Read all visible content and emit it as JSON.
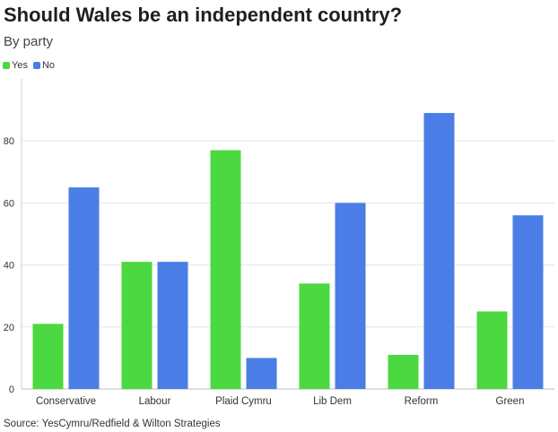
{
  "chart_data": {
    "type": "bar",
    "title": "Should Wales be an independent country?",
    "subtitle": "By party",
    "categories": [
      "Conservative",
      "Labour",
      "Plaid Cymru",
      "Lib Dem",
      "Reform",
      "Green"
    ],
    "series": [
      {
        "name": "Yes",
        "color": "#4cd840",
        "values": [
          21,
          41,
          77,
          34,
          11,
          25
        ]
      },
      {
        "name": "No",
        "color": "#4a7ee6",
        "values": [
          65,
          41,
          10,
          60,
          89,
          56
        ]
      }
    ],
    "ylim": [
      0,
      100
    ],
    "yticks": [
      0,
      20,
      40,
      60,
      80
    ],
    "grid": true,
    "legend_position": "top-left",
    "xlabel": "",
    "ylabel": "",
    "source": "Source: YesCymru/Redfield & Wilton Strategies"
  }
}
